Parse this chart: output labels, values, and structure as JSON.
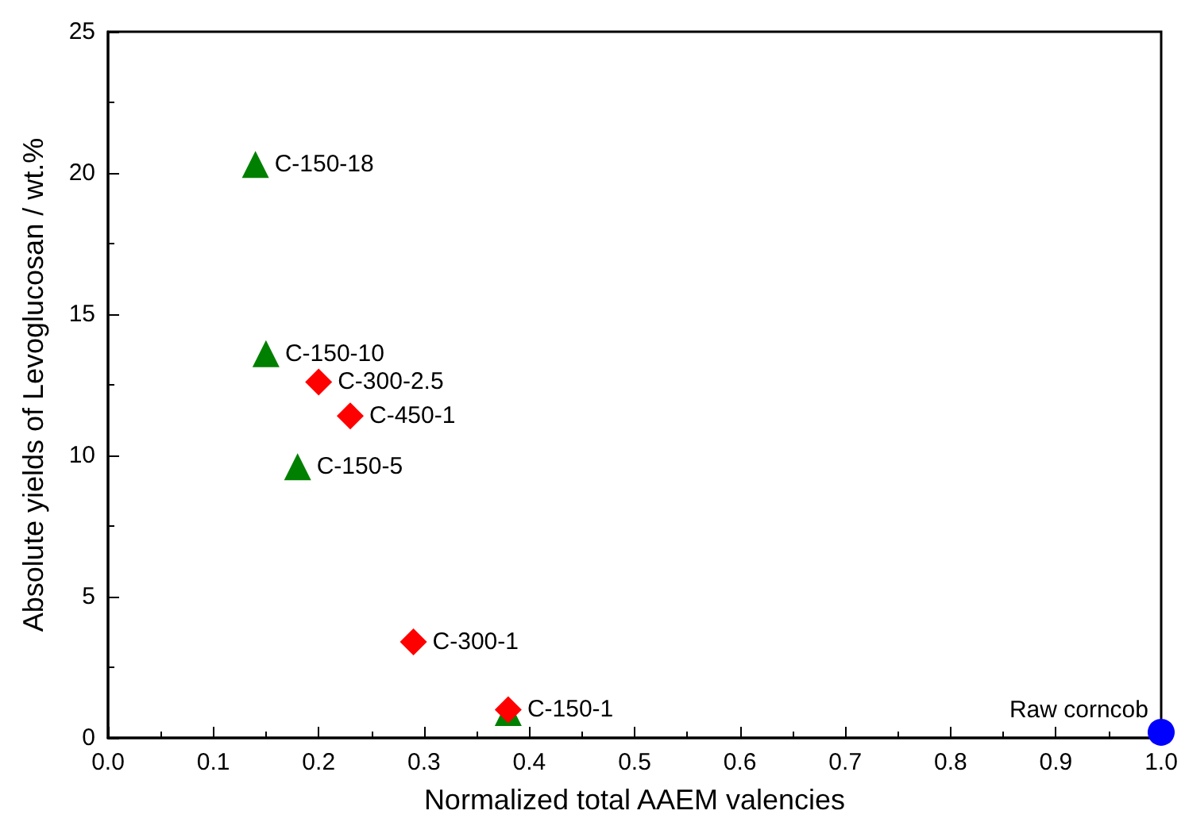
{
  "chart_data": {
    "type": "scatter",
    "xlabel": "Normalized total AAEM valencies",
    "ylabel": "Absolute yields of Levoglucosan / wt.%",
    "xlim": [
      0,
      1
    ],
    "xticks": [
      {
        "value": 0,
        "label": "0.0"
      },
      0.1,
      0.2,
      0.3,
      0.4,
      0.5,
      0.6,
      0.7,
      0.8,
      0.9,
      {
        "value": 1,
        "label": "1.0"
      }
    ],
    "ylim": [
      0,
      25
    ],
    "yticks": [
      0,
      5,
      10,
      15,
      20,
      25
    ],
    "grid": false,
    "series": [
      {
        "color": "#008000",
        "marker": "triangle",
        "x": [
          0.14,
          0.15,
          0.18,
          0.38
        ],
        "values": [
          20.3,
          13.6,
          9.6,
          0.9
        ]
      },
      {
        "color": "#ff0000",
        "marker": "diamond",
        "x": [
          0.2,
          0.23,
          0.29,
          0.38
        ],
        "values": [
          12.6,
          11.4,
          3.4,
          1.0
        ]
      },
      {
        "color": "#0000ff",
        "marker": "circle",
        "x": [
          1.0
        ],
        "values": [
          0.2
        ]
      }
    ],
    "annotations": [
      {
        "text": "C-150-18",
        "x": 0.14,
        "y": 20.3
      },
      {
        "text": "C-150-10",
        "x": 0.15,
        "y": 13.6
      },
      {
        "text": "C-300-2.5",
        "x": 0.2,
        "y": 12.6
      },
      {
        "text": "C-450-1",
        "x": 0.23,
        "y": 11.4
      },
      {
        "text": "C-150-5",
        "x": 0.18,
        "y": 9.6
      },
      {
        "text": "C-300-1",
        "x": 0.29,
        "y": 3.4
      },
      {
        "text": "C-150-1",
        "x": 0.38,
        "y": 1.0
      },
      {
        "text": "Raw corncob",
        "x": 1.0,
        "y": 0.2
      }
    ]
  }
}
